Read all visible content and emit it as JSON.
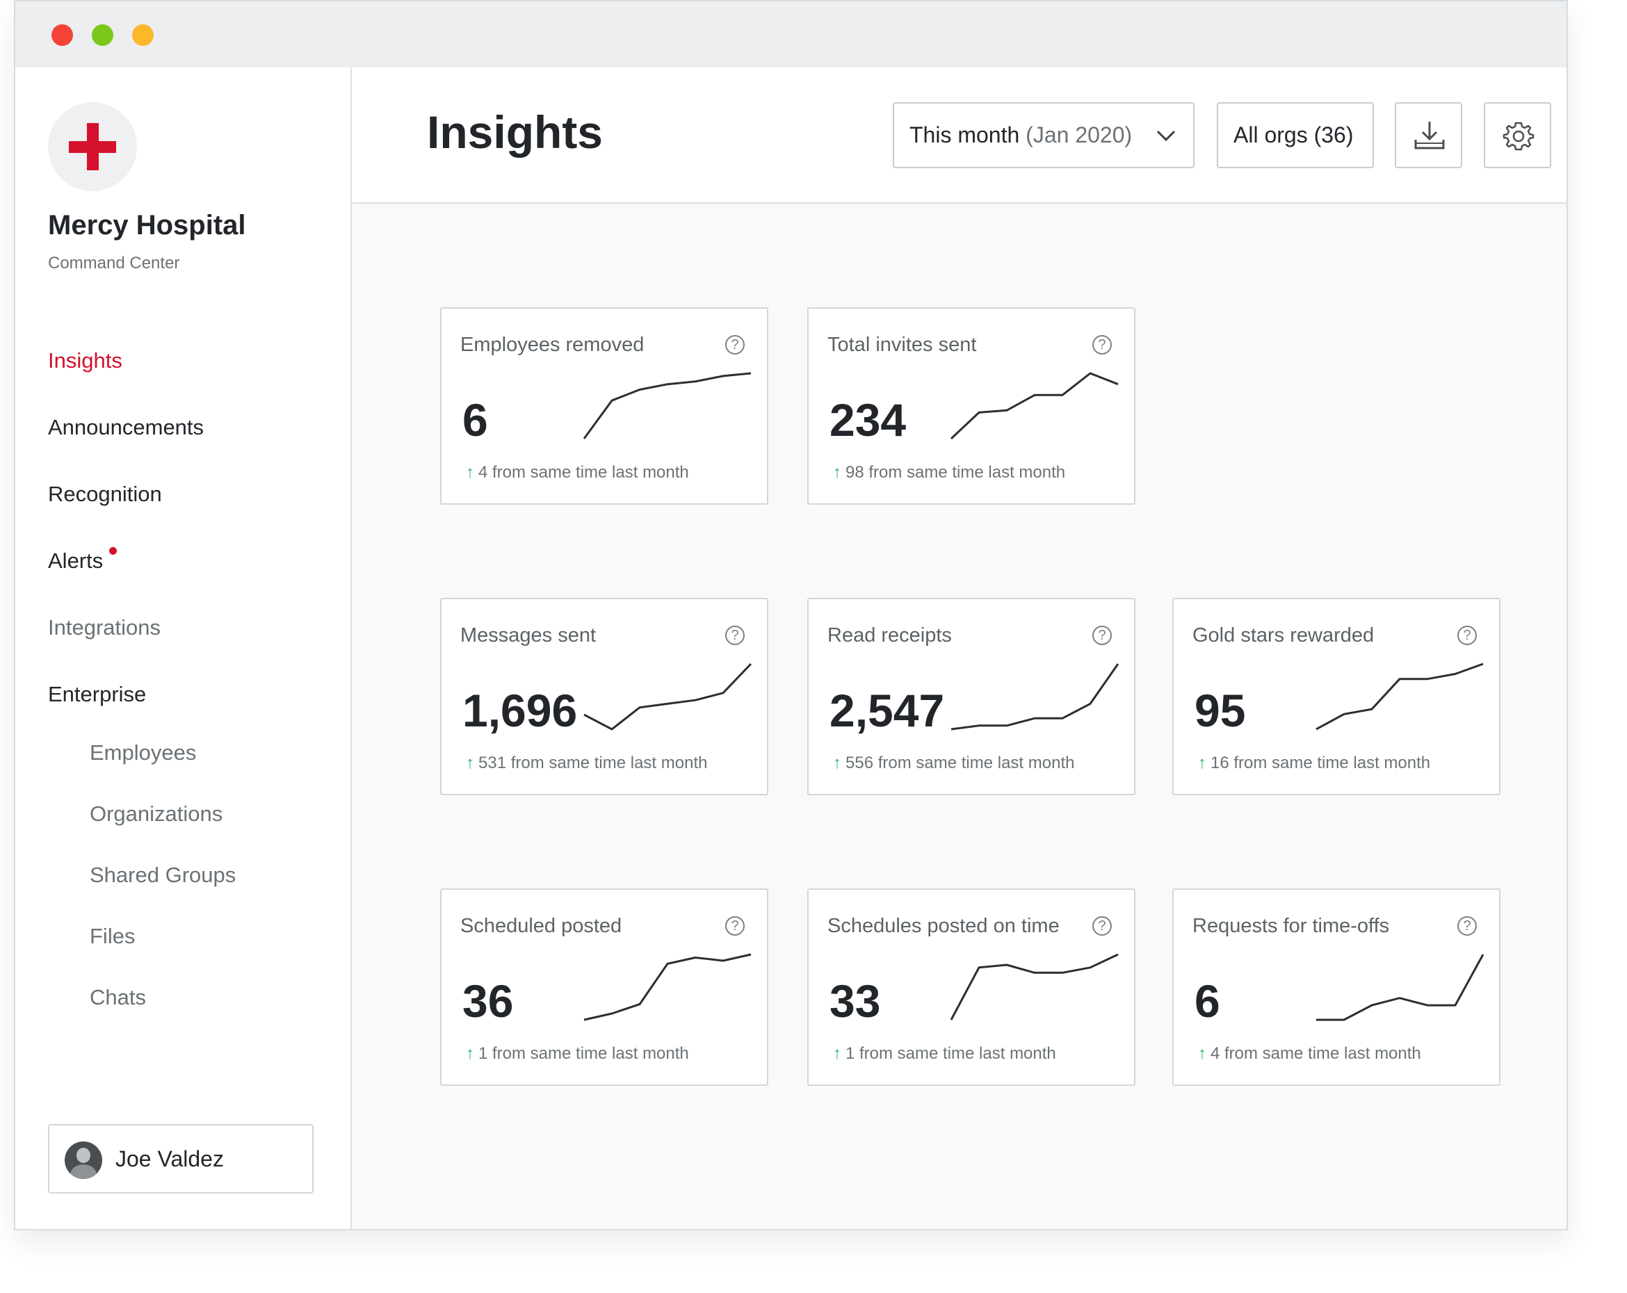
{
  "window": {
    "controls": [
      {
        "name": "close",
        "color": "#f44336"
      },
      {
        "name": "maximize",
        "color": "#7cc81a"
      },
      {
        "name": "minimize",
        "color": "#fbb829"
      }
    ]
  },
  "sidebar": {
    "org_name": "Mercy Hospital",
    "org_subtitle": "Command Center",
    "logo_icon": "red-cross-icon",
    "brand_color": "#d4112c",
    "nav": [
      {
        "label": "Insights",
        "active": true
      },
      {
        "label": "Announcements"
      },
      {
        "label": "Recognition"
      },
      {
        "label": "Alerts",
        "has_notification": true
      },
      {
        "label": "Integrations"
      },
      {
        "label": "Enterprise"
      }
    ],
    "subnav": [
      {
        "label": "Employees"
      },
      {
        "label": "Organizations"
      },
      {
        "label": "Shared Groups"
      },
      {
        "label": "Files"
      },
      {
        "label": "Chats"
      }
    ],
    "user": {
      "name": "Joe Valdez"
    }
  },
  "header": {
    "title": "Insights",
    "period_label": "This month",
    "period_value": "(Jan 2020)",
    "orgs_label": "All orgs (36)",
    "download_icon": "download-icon",
    "settings_icon": "gear-icon"
  },
  "cards": [
    {
      "title": "Employees removed",
      "value": "6",
      "delta": "4 from same time last month",
      "trend": [
        0,
        14,
        18,
        20,
        21,
        23,
        24
      ]
    },
    {
      "title": "Total invites sent",
      "value": "234",
      "delta": "98 from same time last month",
      "trend": [
        0,
        12,
        13,
        20,
        20,
        30,
        25
      ]
    },
    {
      "title": "Messages sent",
      "value": "1,696",
      "delta": "531 from same time last month",
      "trend": [
        4,
        0,
        6,
        7,
        8,
        10,
        18
      ]
    },
    {
      "title": "Read receipts",
      "value": "2,547",
      "delta": "556 from same time last month",
      "trend": [
        0,
        1,
        1,
        3,
        3,
        7,
        18
      ]
    },
    {
      "title": "Gold stars rewarded",
      "value": "95",
      "delta": "16 from same time last month",
      "trend": [
        0,
        3,
        4,
        10,
        10,
        11,
        13
      ]
    },
    {
      "title": "Scheduled posted",
      "value": "36",
      "delta": "1 from same time last month",
      "trend": [
        0,
        2,
        5,
        18,
        20,
        19,
        21
      ]
    },
    {
      "title": "Schedules posted on time",
      "value": "33",
      "delta": "1 from same time last month",
      "trend": [
        0,
        20,
        21,
        18,
        18,
        20,
        25
      ]
    },
    {
      "title": "Requests for time-offs",
      "value": "6",
      "delta": "4 from same time last month",
      "trend": [
        0,
        0,
        2,
        3,
        2,
        2,
        9
      ]
    }
  ]
}
